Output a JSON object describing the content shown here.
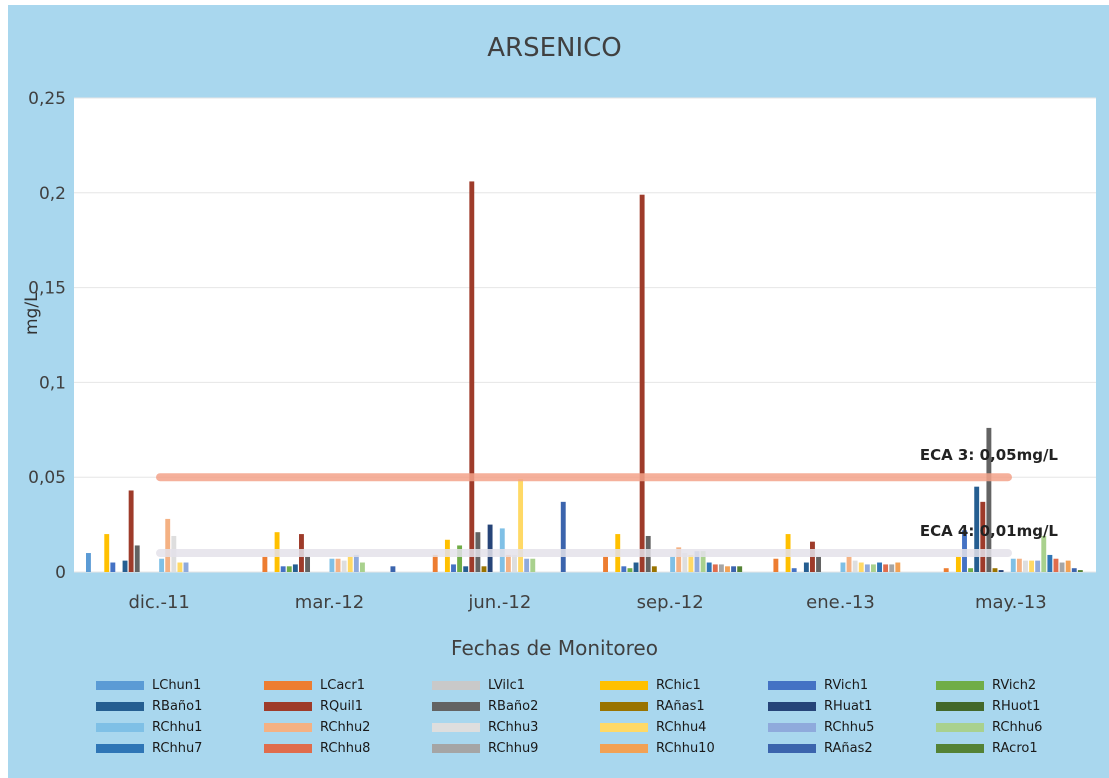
{
  "chart_data": {
    "type": "bar",
    "title": "ARSENICO",
    "xlabel": "Fechas de Monitoreo",
    "ylabel": "mg/L",
    "ylim": [
      0,
      0.25
    ],
    "yticks": [
      "0",
      "0,05",
      "0,1",
      "0,15",
      "0,2",
      "0,25"
    ],
    "grid": true,
    "legend_position": "bottom",
    "categories": [
      "dic.-11",
      "mar.-12",
      "jun.-12",
      "sep.-12",
      "ene.-13",
      "may.-13"
    ],
    "series": [
      {
        "name": "LChun1",
        "color": "#5b9bd5",
        "values": [
          0.01,
          null,
          null,
          null,
          null,
          null
        ]
      },
      {
        "name": "LCacr1",
        "color": "#ed7d31",
        "values": [
          null,
          0.008,
          0.009,
          0.008,
          0.007,
          0.002
        ]
      },
      {
        "name": "LVilc1",
        "color": "#c9c9c9",
        "values": [
          null,
          null,
          null,
          null,
          null,
          null
        ]
      },
      {
        "name": "RChic1",
        "color": "#ffc000",
        "values": [
          0.02,
          0.021,
          0.017,
          0.02,
          0.02,
          0.008
        ]
      },
      {
        "name": "RVich1",
        "color": "#4472c4",
        "values": [
          0.005,
          0.003,
          0.004,
          0.003,
          0.002,
          0.022
        ]
      },
      {
        "name": "RVich2",
        "color": "#70ad47",
        "values": [
          null,
          0.003,
          0.014,
          0.002,
          null,
          0.002
        ]
      },
      {
        "name": "RBaño1",
        "color": "#255e91",
        "values": [
          0.006,
          0.004,
          0.003,
          0.005,
          0.005,
          0.045
        ]
      },
      {
        "name": "RQuil1",
        "color": "#9e3b2a",
        "values": [
          0.043,
          0.02,
          0.206,
          0.199,
          0.016,
          0.037
        ]
      },
      {
        "name": "RBaño2",
        "color": "#636363",
        "values": [
          0.014,
          0.008,
          0.021,
          0.019,
          0.008,
          0.076
        ]
      },
      {
        "name": "RAñas1",
        "color": "#997300",
        "values": [
          null,
          null,
          0.003,
          0.003,
          null,
          0.002
        ]
      },
      {
        "name": "RHuat1",
        "color": "#264478",
        "values": [
          null,
          null,
          0.025,
          null,
          null,
          0.001
        ]
      },
      {
        "name": "RHuot1",
        "color": "#43682b",
        "values": [
          null,
          null,
          null,
          null,
          null,
          null
        ]
      },
      {
        "name": "RChhu1",
        "color": "#7fc0e6",
        "values": [
          0.007,
          0.007,
          0.023,
          0.008,
          0.005,
          0.007
        ]
      },
      {
        "name": "RChhu2",
        "color": "#f4b183",
        "values": [
          0.028,
          0.007,
          0.009,
          0.013,
          0.008,
          0.007
        ]
      },
      {
        "name": "RChhu3",
        "color": "#dedede",
        "values": [
          0.019,
          0.006,
          0.009,
          0.01,
          0.006,
          0.006
        ]
      },
      {
        "name": "RChhu4",
        "color": "#ffd966",
        "values": [
          0.005,
          0.008,
          0.049,
          0.009,
          0.005,
          0.006
        ]
      },
      {
        "name": "RChhu5",
        "color": "#8faadc",
        "values": [
          0.005,
          0.009,
          0.007,
          0.011,
          0.004,
          0.006
        ]
      },
      {
        "name": "RChhu6",
        "color": "#a9d18e",
        "values": [
          null,
          0.005,
          0.007,
          0.011,
          0.004,
          0.019
        ]
      },
      {
        "name": "RChhu7",
        "color": "#2e75b6",
        "values": [
          null,
          null,
          null,
          0.005,
          0.005,
          0.009
        ]
      },
      {
        "name": "RChhu8",
        "color": "#e06c4c",
        "values": [
          null,
          null,
          null,
          0.004,
          0.004,
          0.007
        ]
      },
      {
        "name": "RChhu9",
        "color": "#a5a5a5",
        "values": [
          null,
          null,
          null,
          0.004,
          0.004,
          0.005
        ]
      },
      {
        "name": "RChhu10",
        "color": "#f2a154",
        "values": [
          null,
          null,
          null,
          0.003,
          0.005,
          0.006
        ]
      },
      {
        "name": "RAñas2",
        "color": "#3b64ad",
        "values": [
          null,
          0.003,
          0.037,
          0.003,
          null,
          0.002
        ]
      },
      {
        "name": "RAcro1",
        "color": "#548235",
        "values": [
          null,
          null,
          null,
          0.003,
          null,
          0.001
        ]
      }
    ],
    "reference_lines": [
      {
        "label": "ECA 3: 0,05mg/L",
        "value": 0.05,
        "color": "#f4a38a"
      },
      {
        "label": "ECA 4: 0,01mg/L",
        "value": 0.01,
        "color": "#e4e2ea"
      }
    ]
  }
}
